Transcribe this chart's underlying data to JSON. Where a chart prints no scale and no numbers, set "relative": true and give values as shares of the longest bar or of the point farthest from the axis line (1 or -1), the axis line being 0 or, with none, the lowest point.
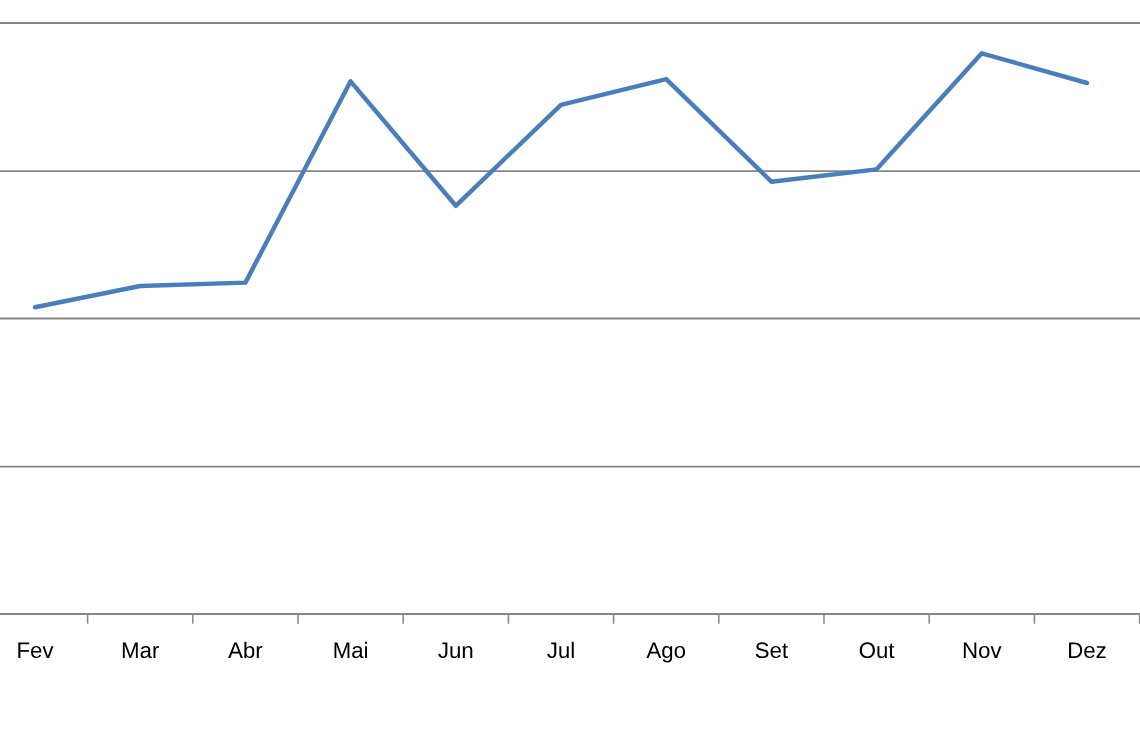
{
  "chart_data": {
    "type": "line",
    "relative": true,
    "categories": [
      "Fev",
      "Mar",
      "Abr",
      "Mai",
      "Jun",
      "Jul",
      "Ago",
      "Set",
      "Out",
      "Nov",
      "Dez"
    ],
    "series": [
      {
        "color": "#4a7ebb",
        "values": [
          0.547,
          0.585,
          0.591,
          0.95,
          0.728,
          0.908,
          0.954,
          0.771,
          0.793,
          1,
          0.947
        ]
      }
    ],
    "ref_lines": [
      {
        "axis": "y",
        "value": 0.263,
        "color": "#868686"
      },
      {
        "axis": "y",
        "value": 0.527,
        "color": "#868686"
      },
      {
        "axis": "y",
        "value": 0.79,
        "color": "#868686"
      },
      {
        "axis": "y",
        "value": 1.054,
        "color": "#868686"
      }
    ],
    "tick_labels": "x",
    "marker": "none",
    "line_style": "solid"
  }
}
